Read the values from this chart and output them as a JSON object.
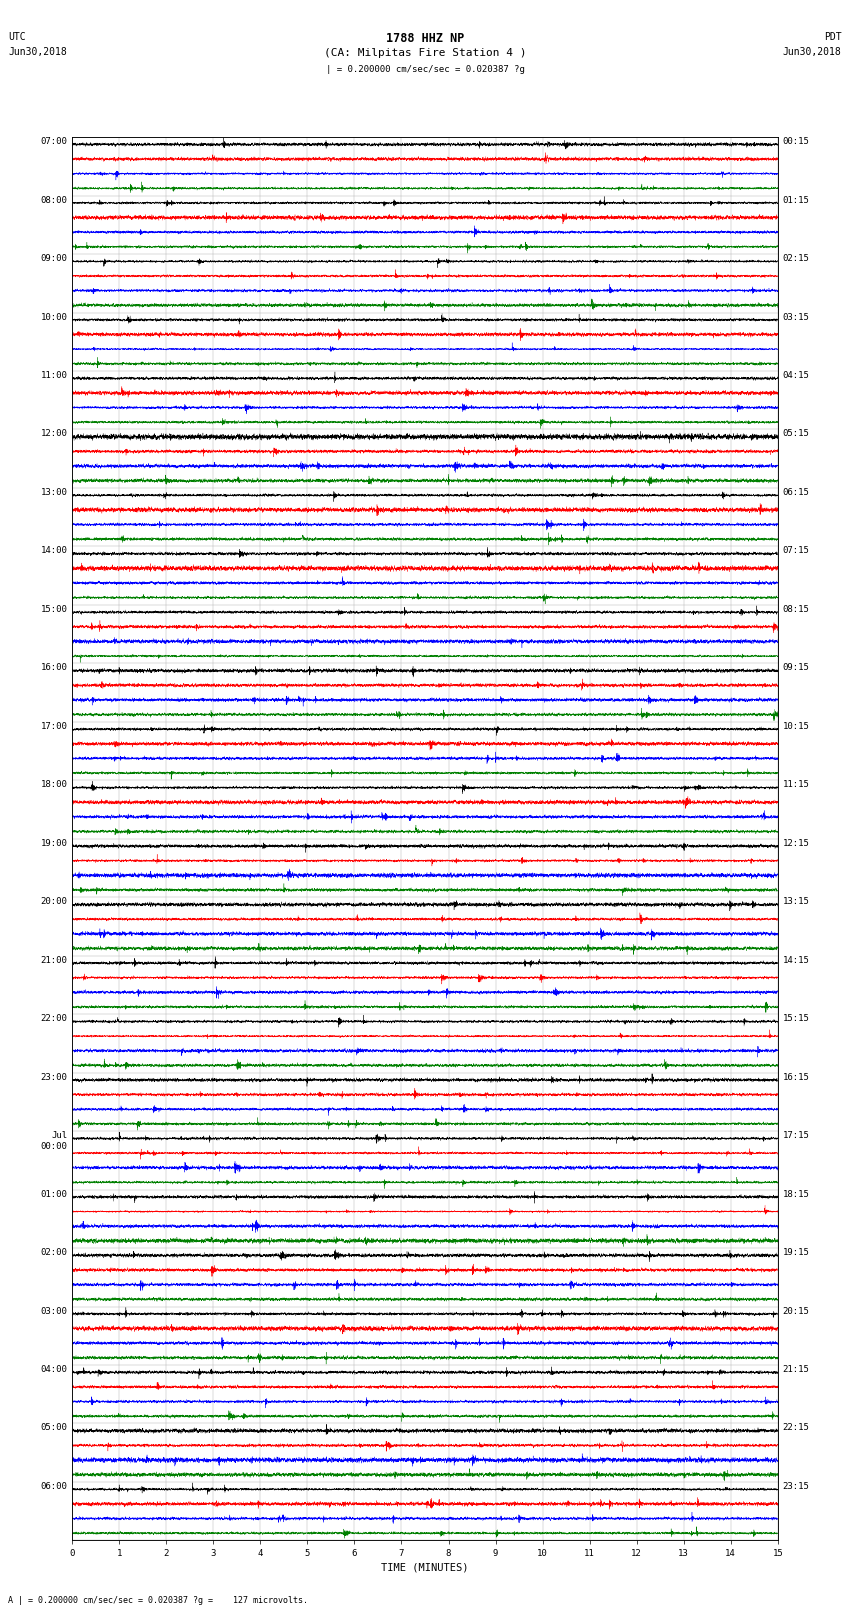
{
  "title_line1": "1788 HHZ NP",
  "title_line2": "(CA: Milpitas Fire Station 4 )",
  "scale_text": "| = 0.200000 cm/sec/sec = 0.020387 ?g",
  "footer_text": "A | = 0.200000 cm/sec/sec = 0.020387 ?g =    127 microvolts.",
  "left_label_line1": "UTC",
  "left_label_line2": "Jun30,2018",
  "right_label_line1": "PDT",
  "right_label_line2": "Jun30,2018",
  "xlabel": "TIME (MINUTES)",
  "time_labels_left": [
    "07:00",
    "08:00",
    "09:00",
    "10:00",
    "11:00",
    "12:00",
    "13:00",
    "14:00",
    "15:00",
    "16:00",
    "17:00",
    "18:00",
    "19:00",
    "20:00",
    "21:00",
    "22:00",
    "23:00",
    "Jul\n00:00",
    "01:00",
    "02:00",
    "03:00",
    "04:00",
    "05:00",
    "06:00"
  ],
  "time_labels_right": [
    "00:15",
    "01:15",
    "02:15",
    "03:15",
    "04:15",
    "05:15",
    "06:15",
    "07:15",
    "08:15",
    "09:15",
    "10:15",
    "11:15",
    "12:15",
    "13:15",
    "14:15",
    "15:15",
    "16:15",
    "17:15",
    "18:15",
    "19:15",
    "20:15",
    "21:15",
    "22:15",
    "23:15"
  ],
  "colors": [
    "black",
    "red",
    "blue",
    "green"
  ],
  "n_rows": 24,
  "traces_per_row": 4,
  "minutes": 15,
  "samples_per_minute": 600,
  "background_color": "white",
  "fig_width": 8.5,
  "fig_height": 16.13,
  "dpi": 100,
  "title_fontsize": 8.5,
  "label_fontsize": 7,
  "tick_fontsize": 6.5,
  "trace_amp": 0.11
}
